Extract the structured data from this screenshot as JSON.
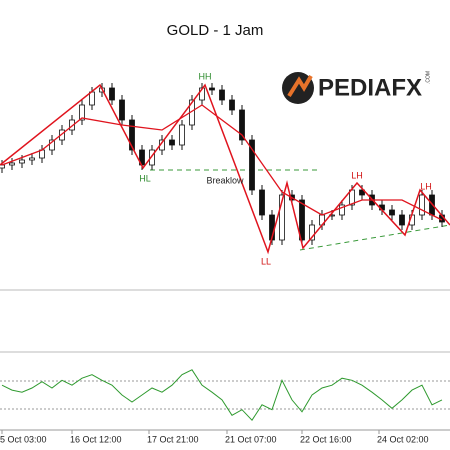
{
  "chart_data": {
    "type": "candlestick",
    "title": "GOLD - 1 Jam",
    "brand": {
      "name": "PEDIAFX",
      "suffix": ".COM",
      "color": "#e8732a"
    },
    "ylim": [
      0,
      230
    ],
    "up_color": "#ffffff",
    "down_color": "#111111",
    "candles": {
      "open": [
        122,
        125,
        127,
        130,
        132,
        140,
        150,
        160,
        170,
        185,
        198,
        202,
        190,
        170,
        140,
        125,
        140,
        150,
        145,
        165,
        190,
        202,
        200,
        190,
        180,
        150,
        100,
        75,
        50,
        95,
        90,
        50,
        65,
        75,
        75,
        85,
        100,
        95,
        85,
        80,
        75,
        65,
        75,
        95,
        75
      ],
      "high": [
        130,
        132,
        135,
        137,
        145,
        155,
        165,
        175,
        190,
        203,
        207,
        207,
        195,
        175,
        145,
        145,
        155,
        155,
        170,
        195,
        207,
        207,
        205,
        195,
        185,
        155,
        105,
        80,
        100,
        100,
        95,
        70,
        80,
        80,
        90,
        105,
        105,
        100,
        90,
        85,
        80,
        80,
        100,
        100,
        80
      ],
      "low": [
        117,
        120,
        122,
        125,
        127,
        135,
        145,
        155,
        165,
        180,
        193,
        185,
        165,
        135,
        120,
        120,
        135,
        140,
        140,
        160,
        185,
        195,
        185,
        175,
        145,
        95,
        70,
        45,
        45,
        85,
        45,
        45,
        60,
        70,
        70,
        80,
        90,
        80,
        75,
        70,
        60,
        60,
        70,
        70,
        63
      ],
      "close": [
        125,
        127,
        130,
        132,
        140,
        150,
        160,
        170,
        185,
        198,
        202,
        190,
        170,
        140,
        125,
        140,
        150,
        145,
        165,
        190,
        202,
        200,
        190,
        180,
        150,
        100,
        75,
        50,
        95,
        90,
        50,
        65,
        75,
        75,
        85,
        100,
        95,
        85,
        80,
        75,
        65,
        75,
        95,
        75,
        68
      ]
    },
    "zigzag": {
      "color": "#e0141e",
      "x": [
        -0.2,
        9.8,
        14.1,
        20.3,
        26.6,
        28.5,
        30.1,
        35.5,
        40.3,
        41.8,
        44.8
      ],
      "values": [
        125,
        205,
        122,
        205,
        38,
        107,
        42,
        107,
        55,
        100,
        65
      ]
    },
    "moving_average": {
      "color": "#e0141e",
      "x": [
        0,
        4,
        8,
        12,
        16,
        20,
        24,
        28,
        32,
        36,
        40,
        44
      ],
      "values": [
        125,
        140,
        172,
        165,
        160,
        185,
        155,
        98,
        75,
        90,
        90,
        70
      ]
    },
    "support": {
      "color": "#3a9a3a",
      "x": [
        14.8,
        31.6
      ],
      "values": [
        120,
        120
      ]
    },
    "trendline": {
      "color": "#3a9a3a",
      "x": [
        29.8,
        44.8
      ],
      "values": [
        40,
        65
      ]
    },
    "annotations": [
      {
        "text": "HH",
        "color": "#2e8b2e"
      },
      {
        "text": "HL",
        "color": "#2e8b2e"
      },
      {
        "text": "Breaklow",
        "color": "#222222"
      },
      {
        "text": "LL",
        "color": "#d01010"
      },
      {
        "text": "LH",
        "color": "#d01010"
      },
      {
        "text": "LH",
        "color": "#d01010"
      }
    ],
    "x_labels": [
      "5 Oct 03:00",
      "16 Oct 12:00",
      "17 Oct 21:00",
      "21 Oct 07:00",
      "22 Oct 16:00",
      "24 Oct 02:00"
    ],
    "indicator": {
      "type": "line",
      "color": "#2f9a2f",
      "ylim": [
        0,
        100
      ],
      "levels": [
        30,
        70
      ],
      "values": [
        64,
        57,
        54,
        60,
        69,
        60,
        71,
        64,
        74,
        79,
        71,
        64,
        50,
        40,
        50,
        60,
        54,
        64,
        79,
        86,
        64,
        54,
        43,
        21,
        29,
        14,
        36,
        29,
        71,
        43,
        26,
        50,
        60,
        64,
        74,
        71,
        64,
        54,
        43,
        31,
        43,
        57,
        64,
        36,
        43
      ]
    }
  }
}
